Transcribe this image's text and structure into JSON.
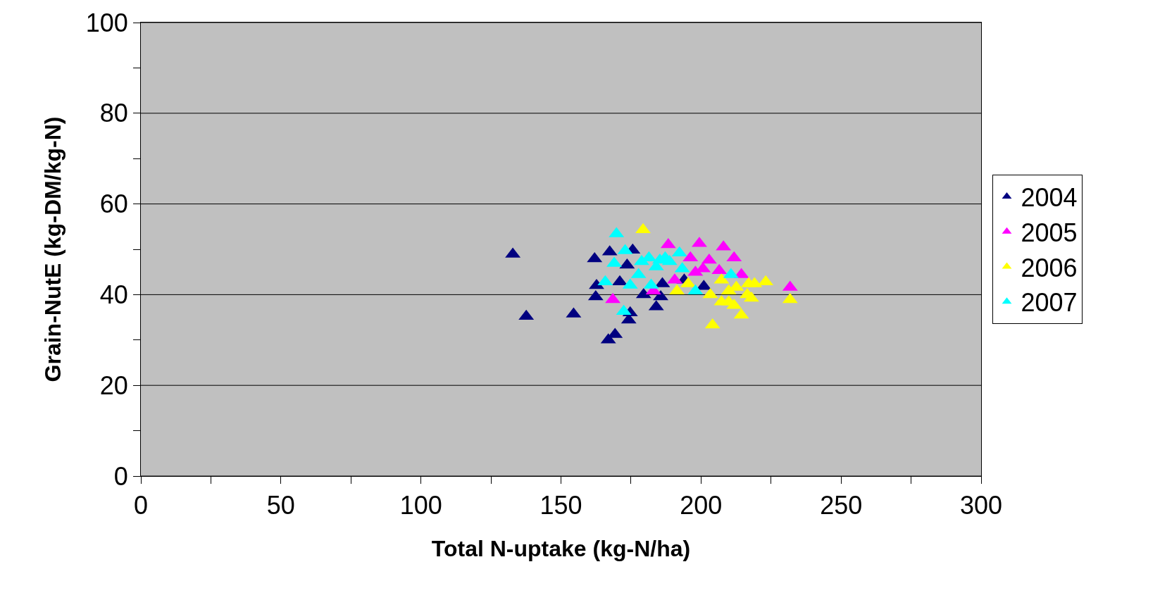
{
  "chart_data": {
    "type": "scatter",
    "xlabel": "Total N-uptake (kg-N/ha)",
    "ylabel": "Grain-NutE (kg-DM/kg-N)",
    "xlim": [
      0,
      300
    ],
    "ylim": [
      0,
      100
    ],
    "xticks": [
      0,
      {
        "value": 25,
        "label": null
      },
      50,
      {
        "value": 75,
        "label": null
      },
      100,
      {
        "value": 125,
        "label": null
      },
      150,
      {
        "value": 175,
        "label": null
      },
      200,
      {
        "value": 225,
        "label": null
      },
      250,
      {
        "value": 275,
        "label": null
      },
      300
    ],
    "yticks": [
      0,
      {
        "value": 10,
        "label": null
      },
      20,
      {
        "value": 30,
        "label": null
      },
      40,
      {
        "value": 50,
        "label": null
      },
      60,
      {
        "value": 70,
        "label": null
      },
      80,
      {
        "value": 90,
        "label": null
      },
      100
    ],
    "grid": "y",
    "legend": "right",
    "marker": "triangle",
    "series": [
      {
        "name": "2004",
        "color": "#000080",
        "x": [
          132.8,
          137.6,
          154.5,
          162,
          162.7,
          162.4,
          167.4,
          166.9,
          169.3,
          171,
          174.2,
          174.7,
          173.6,
          175.6,
          179.5,
          184,
          185.6,
          186.2,
          194,
          201
        ],
        "values": [
          48.9,
          35.2,
          35.7,
          47.9,
          42,
          39.5,
          49.4,
          30,
          31.2,
          42.8,
          34.4,
          36,
          46.5,
          49.8,
          40,
          37.3,
          39.5,
          42.4,
          43.2,
          41.8
        ]
      },
      {
        "name": "2005",
        "color": "#ff00ff",
        "x": [
          168.5,
          183,
          188.3,
          196.2,
          199.4,
          200.7,
          202.9,
          198,
          208,
          211.8,
          206.5,
          214.4,
          231.8,
          190.6
        ],
        "values": [
          38.9,
          40.8,
          51,
          48.1,
          51.3,
          45.7,
          47.6,
          44.9,
          50.5,
          48.1,
          45.3,
          44.4,
          41.6,
          43.2
        ]
      },
      {
        "name": "2006",
        "color": "#ffff00",
        "x": [
          179.3,
          191.4,
          195.4,
          204.1,
          203.3,
          207.3,
          207.3,
          209.9,
          211.8,
          214.4,
          212.6,
          216.5,
          217,
          219.1,
          223.1,
          231.8,
          209.9,
          218
        ],
        "values": [
          54.3,
          40.8,
          42.4,
          33.3,
          40,
          43.2,
          38.4,
          38.4,
          37.6,
          35.5,
          41.6,
          40,
          42.4,
          42.4,
          42.8,
          38.9,
          40.8,
          39.2
        ]
      },
      {
        "name": "2007",
        "color": "#00ffff",
        "x": [
          169.8,
          165.8,
          169,
          172.9,
          174.7,
          172.4,
          177.7,
          178.8,
          181.4,
          182.2,
          184,
          185.3,
          187.2,
          188.8,
          192.3,
          193.3,
          198,
          210.7
        ],
        "values": [
          53.4,
          42.8,
          46.9,
          49.7,
          42.1,
          36.3,
          44.4,
          47.3,
          48.1,
          42.1,
          46.1,
          47.6,
          48.1,
          47.3,
          49.2,
          45.7,
          40.8,
          44.4
        ]
      }
    ]
  }
}
